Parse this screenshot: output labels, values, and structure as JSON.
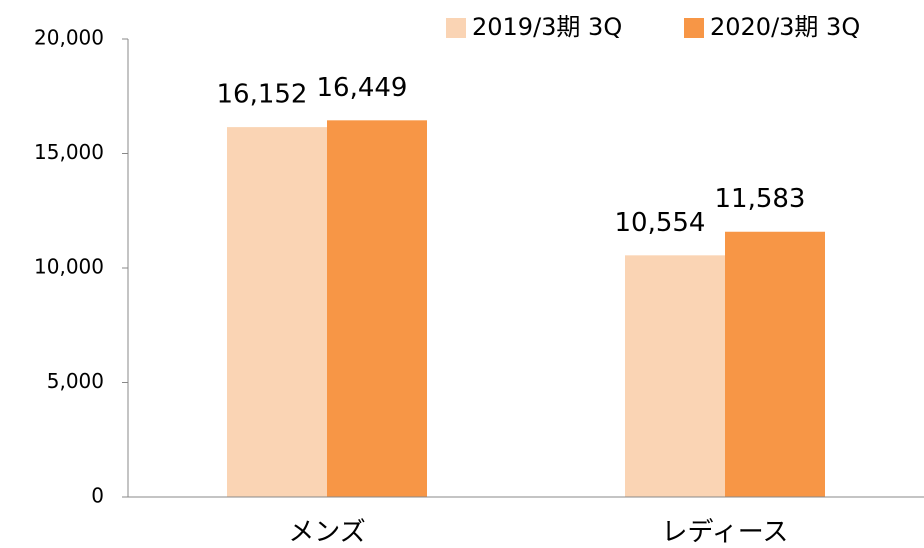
{
  "chart_data": {
    "type": "bar",
    "categories": [
      "メンズ",
      "レディース"
    ],
    "series": [
      {
        "name": "2019/3期 3Q",
        "color": "#fad4b4",
        "values": [
          16152,
          10554
        ],
        "value_labels": [
          "16,152",
          "10,554"
        ]
      },
      {
        "name": "2020/3期 3Q",
        "color": "#f79646",
        "values": [
          16449,
          11583
        ],
        "value_labels": [
          "16,449",
          "11,583"
        ]
      }
    ],
    "ylim": [
      0,
      20000
    ],
    "yticks": [
      0,
      {
        "value": 5000,
        "label": "5,000"
      },
      {
        "value": 10000,
        "label": "10,000"
      },
      {
        "value": 15000,
        "label": "15,000"
      },
      {
        "value": 20000,
        "label": "20,000"
      }
    ],
    "grid": false,
    "legend": "top-right"
  }
}
